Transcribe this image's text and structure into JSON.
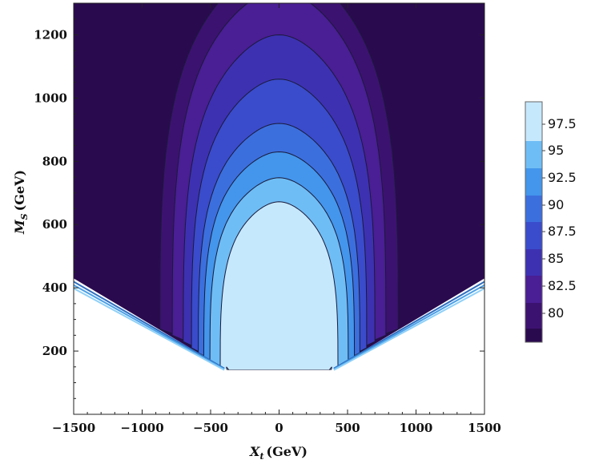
{
  "chart_data": {
    "type": "contour",
    "title": "",
    "xlabel": {
      "base": "X",
      "sub": "t",
      "unit": "(GeV)"
    },
    "ylabel": {
      "base": "M",
      "sub": "S",
      "unit": "(GeV)"
    },
    "xlim": [
      -1500,
      1500
    ],
    "ylim": [
      0,
      1300
    ],
    "x_ticks": [
      -1500,
      -1000,
      -500,
      0,
      500,
      1000,
      1500
    ],
    "x_tick_labels": [
      "−1500",
      "−1000",
      "−500",
      "0",
      "500",
      "1000",
      "1500"
    ],
    "y_ticks": [
      200,
      400,
      600,
      800,
      1000,
      1200
    ],
    "y_tick_labels": [
      "200",
      "400",
      "600",
      "800",
      "1000",
      "1200"
    ],
    "legend_position": "right",
    "levels": [
      {
        "label": "80",
        "value": 80,
        "color": "#2a0a4f"
      },
      {
        "label": "82.5",
        "value": 82.5,
        "color": "#3c1270"
      },
      {
        "label": "85",
        "value": 85,
        "color": "#4a1e94"
      },
      {
        "label": "87.5",
        "value": 87.5,
        "color": "#3d31b2"
      },
      {
        "label": "90",
        "value": 90,
        "color": "#3a4ccc"
      },
      {
        "label": "92.5",
        "value": 92.5,
        "color": "#3c6fde"
      },
      {
        "label": "95",
        "value": 95,
        "color": "#4396ec"
      },
      {
        "label": "97.5",
        "value": 97.5,
        "color": "#6fbdf5"
      }
    ],
    "colorbar_min_color": "#2a0a4f",
    "colorbar_max_color": "#c6e8fd",
    "top_region_color": "#c6e8fd",
    "contour_line_color": "#1a1a3a",
    "excluded_region": {
      "description_color": "#ffffff",
      "min_ms_at_xt0": 140
    }
  }
}
